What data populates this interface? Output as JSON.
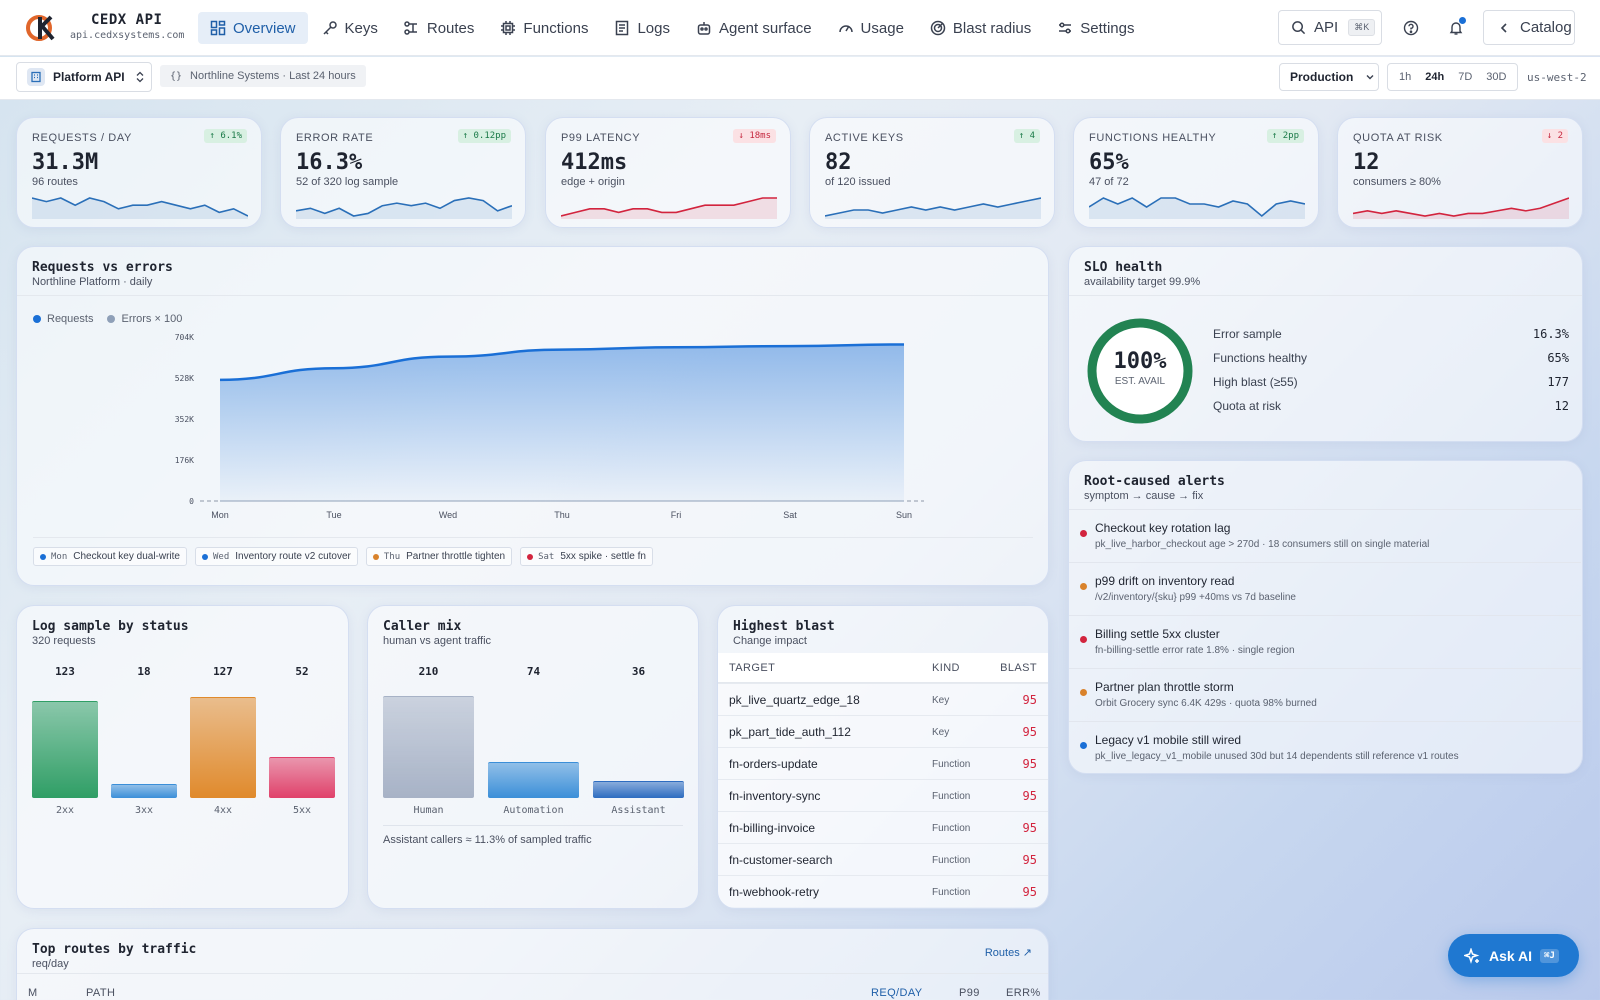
{
  "brand": {
    "name": "CEDX API",
    "domain": "api.cedxsystems.com"
  },
  "nav": {
    "items": [
      {
        "label": "Overview",
        "icon": "grid-icon"
      },
      {
        "label": "Keys",
        "icon": "key-icon"
      },
      {
        "label": "Routes",
        "icon": "routes-icon"
      },
      {
        "label": "Functions",
        "icon": "chip-icon"
      },
      {
        "label": "Logs",
        "icon": "logs-icon"
      },
      {
        "label": "Agent surface",
        "icon": "robot-icon"
      },
      {
        "label": "Usage",
        "icon": "gauge-icon"
      },
      {
        "label": "Blast radius",
        "icon": "radar-icon"
      },
      {
        "label": "Settings",
        "icon": "sliders-icon"
      }
    ],
    "search_label": "API",
    "search_kbd": "⌘K",
    "catalog": "Catalog"
  },
  "subbar": {
    "project": "Platform API",
    "context": "Northline Systems · Last 24 hours",
    "environment": "Production",
    "ranges": [
      "1h",
      "24h",
      "7D",
      "30D"
    ],
    "active_range": "24h",
    "region": "us-west-2"
  },
  "kpis": [
    {
      "label": "REQUESTS / DAY",
      "value": "31.3M",
      "sub": "96 routes",
      "delta": "↑ 6.1%",
      "trend": "up",
      "color": "#2a6fb8",
      "spark": [
        6,
        5,
        6,
        4,
        6,
        5,
        3,
        4,
        4,
        5,
        4,
        3,
        4,
        2,
        3,
        1
      ]
    },
    {
      "label": "ERROR RATE",
      "value": "16.3%",
      "sub": "52 of 320 log sample",
      "delta": "↑ 0.12pp",
      "trend": "up",
      "color": "#2a6fb8",
      "spark": [
        4,
        5,
        3,
        5,
        2,
        3,
        6,
        7,
        6,
        7,
        5,
        8,
        9,
        8,
        4,
        6
      ]
    },
    {
      "label": "P99 LATENCY",
      "value": "412ms",
      "sub": "edge + origin",
      "delta": "↓ 18ms",
      "trend": "down",
      "color": "#d2243e",
      "spark": [
        2,
        3,
        4,
        4,
        3,
        4,
        4,
        3,
        3,
        4,
        5,
        5,
        5,
        6,
        7,
        7
      ]
    },
    {
      "label": "ACTIVE KEYS",
      "value": "82",
      "sub": "of 120 issued",
      "delta": "↑ 4",
      "trend": "up",
      "color": "#2a6fb8",
      "spark": [
        2,
        3,
        4,
        4,
        3,
        4,
        5,
        4,
        5,
        4,
        5,
        6,
        5,
        6,
        7,
        8
      ]
    },
    {
      "label": "FUNCTIONS HEALTHY",
      "value": "65%",
      "sub": "47 of 72",
      "delta": "↑ 2pp",
      "trend": "up",
      "color": "#2a6fb8",
      "spark": [
        5,
        8,
        6,
        8,
        5,
        8,
        8,
        6,
        6,
        5,
        7,
        6,
        2,
        6,
        7,
        6
      ]
    },
    {
      "label": "QUOTA AT RISK",
      "value": "12",
      "sub": "consumers ≥ 80%",
      "delta": "↓ 2",
      "trend": "down",
      "color": "#d2243e",
      "spark": [
        3,
        4,
        3,
        4,
        3,
        2,
        3,
        2,
        3,
        3,
        4,
        5,
        4,
        5,
        7,
        9
      ]
    }
  ],
  "requests_chart": {
    "title": "Requests vs errors",
    "subtitle": "Northline Platform · daily",
    "legend": [
      "Requests",
      "Errors × 100"
    ],
    "events": [
      {
        "day": "Mon",
        "label": "Checkout key dual-write",
        "color": "#1a6fd6"
      },
      {
        "day": "Wed",
        "label": "Inventory route v2 cutover",
        "color": "#1a6fd6"
      },
      {
        "day": "Thu",
        "label": "Partner throttle tighten",
        "color": "#d9822b"
      },
      {
        "day": "Sat",
        "label": "5xx spike · settle fn",
        "color": "#d2243e"
      }
    ]
  },
  "chart_data": [
    {
      "type": "area",
      "title": "Requests vs errors",
      "categories": [
        "Mon",
        "Tue",
        "Wed",
        "Thu",
        "Fri",
        "Sat",
        "Sun"
      ],
      "yticks": [
        "0",
        "176K",
        "352K",
        "528K",
        "704K"
      ],
      "ylim": [
        0,
        704000
      ],
      "series": [
        {
          "name": "Requests",
          "values": [
            520000,
            570000,
            620000,
            650000,
            660000,
            665000,
            672000
          ],
          "color": "#1a6fd6"
        },
        {
          "name": "Errors × 100",
          "values": [
            0,
            0,
            0,
            0,
            0,
            0,
            0
          ],
          "color": "#8fa0b8"
        }
      ],
      "legend": "top-left",
      "grid": false
    },
    {
      "type": "bar",
      "title": "Log sample by status",
      "categories": [
        "2xx",
        "3xx",
        "4xx",
        "5xx"
      ],
      "values": [
        123,
        18,
        127,
        52
      ],
      "colors": [
        "#2f9e65",
        "#3b8fd8",
        "#e08a2c",
        "#e0416a"
      ],
      "ylim": [
        0,
        140
      ]
    },
    {
      "type": "bar",
      "title": "Caller mix",
      "categories": [
        "Human",
        "Automation",
        "Assistant"
      ],
      "values": [
        210,
        74,
        36
      ],
      "colors": [
        "#a7b2c6",
        "#3b8fd8",
        "#2d6cc0"
      ],
      "ylim": [
        0,
        230
      ]
    }
  ],
  "slo": {
    "title": "SLO health",
    "subtitle": "availability target 99.9%",
    "gauge_value": "100%",
    "gauge_label": "EST. AVAIL",
    "gauge_fraction": 1.0,
    "rows": [
      {
        "label": "Error sample",
        "value": "16.3%"
      },
      {
        "label": "Functions healthy",
        "value": "65%"
      },
      {
        "label": "High blast (≥55)",
        "value": "177"
      },
      {
        "label": "Quota at risk",
        "value": "12"
      }
    ]
  },
  "alerts": {
    "title": "Root-caused alerts",
    "subtitle": "symptom → cause → fix",
    "items": [
      {
        "title": "Checkout key rotation lag",
        "detail": "pk_live_harbor_checkout age > 270d · 18 consumers still on single material",
        "color": "#d2243e"
      },
      {
        "title": "p99 drift on inventory read",
        "detail": "/v2/inventory/{sku} p99 +40ms vs 7d baseline",
        "color": "#d9822b"
      },
      {
        "title": "Billing settle 5xx cluster",
        "detail": "fn-billing-settle error rate 1.8% · single region",
        "color": "#d2243e"
      },
      {
        "title": "Partner plan throttle storm",
        "detail": "Orbit Grocery sync 6.4K 429s · quota 98% burned",
        "color": "#d9822b"
      },
      {
        "title": "Legacy v1 mobile still wired",
        "detail": "pk_live_legacy_v1_mobile unused 30d but 14 dependents still reference v1 routes",
        "color": "#1a6fd6"
      }
    ]
  },
  "status_card": {
    "title": "Log sample by status",
    "subtitle": "320 requests"
  },
  "caller_card": {
    "title": "Caller mix",
    "subtitle": "human vs agent traffic",
    "note": "Assistant callers ≈ 11.3% of sampled traffic"
  },
  "blast": {
    "title": "Highest blast",
    "subtitle": "Change impact",
    "headers": [
      "TARGET",
      "KIND",
      "BLAST"
    ],
    "rows": [
      {
        "target": "pk_live_quartz_edge_18",
        "kind": "Key",
        "blast": "95"
      },
      {
        "target": "pk_part_tide_auth_112",
        "kind": "Key",
        "blast": "95"
      },
      {
        "target": "fn-orders-update",
        "kind": "Function",
        "blast": "95"
      },
      {
        "target": "fn-inventory-sync",
        "kind": "Function",
        "blast": "95"
      },
      {
        "target": "fn-billing-invoice",
        "kind": "Function",
        "blast": "95"
      },
      {
        "target": "fn-customer-search",
        "kind": "Function",
        "blast": "95"
      },
      {
        "target": "fn-webhook-retry",
        "kind": "Function",
        "blast": "95"
      }
    ]
  },
  "routes": {
    "title": "Top routes by traffic",
    "subtitle": "req/day",
    "link": "Routes ↗",
    "headers": [
      "M",
      "PATH",
      "REQ/DAY",
      "P99",
      "ERR%"
    ]
  },
  "askai": {
    "label": "Ask AI",
    "kbd": "⌘J"
  }
}
